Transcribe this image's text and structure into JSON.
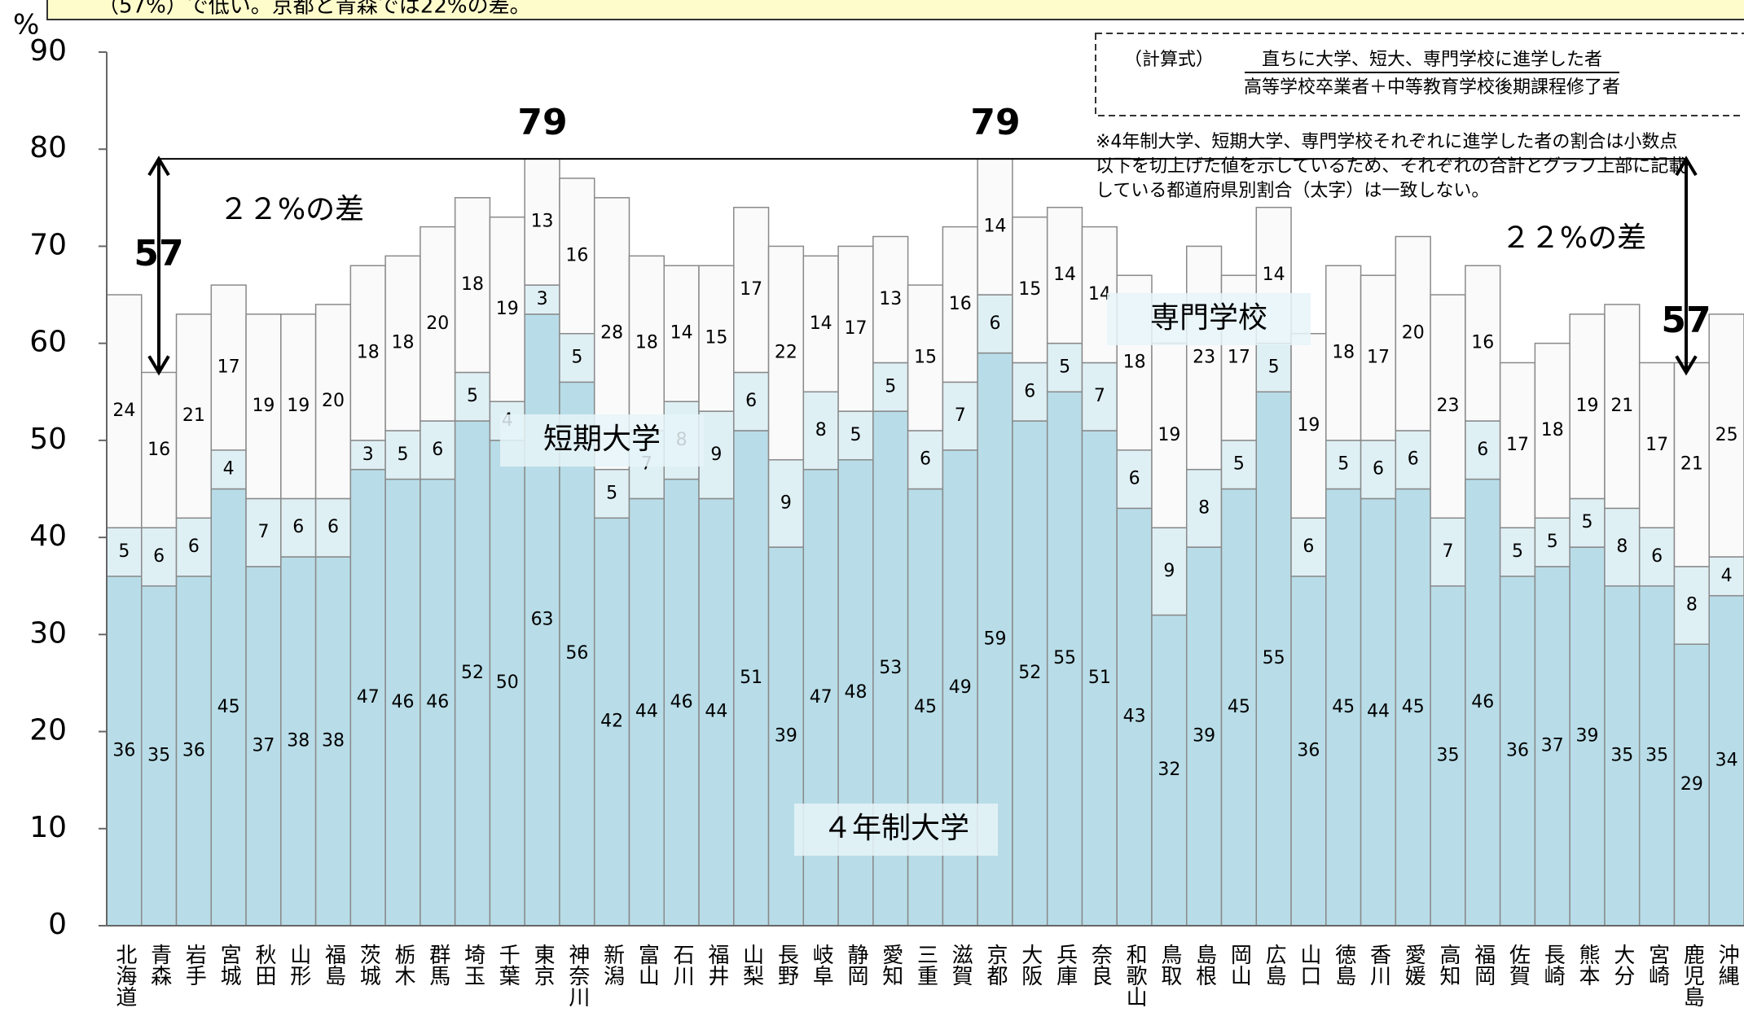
{
  "chart_data": {
    "type": "stacked_bar",
    "header": "（57%）で低い。京都と青森では22%の差。",
    "y_unit": "%",
    "categories": [
      "北海道",
      "青森",
      "岩手",
      "宮城",
      "秋田",
      "山形",
      "福島",
      "茨城",
      "栃木",
      "群馬",
      "埼玉",
      "千葉",
      "東京",
      "神奈川",
      "新潟",
      "富山",
      "石川",
      "福井",
      "山梨",
      "長野",
      "岐阜",
      "静岡",
      "愛知",
      "三重",
      "滋賀",
      "京都",
      "大阪",
      "兵庫",
      "奈良",
      "和歌山",
      "鳥取",
      "島根",
      "岡山",
      "広島",
      "山口",
      "徳島",
      "香川",
      "愛媛",
      "高知",
      "福岡",
      "佐賀",
      "長崎",
      "熊本",
      "大分",
      "宮崎",
      "鹿児島",
      "沖縄"
    ],
    "series": [
      {
        "name": "４年制大学",
        "color": "#b8dde8",
        "values": [
          36,
          35,
          36,
          45,
          37,
          38,
          38,
          47,
          46,
          46,
          52,
          50,
          63,
          56,
          42,
          44,
          46,
          44,
          51,
          39,
          47,
          48,
          53,
          45,
          49,
          59,
          52,
          55,
          51,
          43,
          32,
          39,
          45,
          55,
          36,
          45,
          44,
          45,
          35,
          46,
          36,
          37,
          39,
          35,
          35,
          29,
          34
        ]
      },
      {
        "name": "短期大学",
        "color": "#dff0f5",
        "values": [
          5,
          6,
          6,
          4,
          7,
          6,
          6,
          3,
          5,
          6,
          5,
          4,
          3,
          5,
          5,
          7,
          8,
          9,
          6,
          9,
          8,
          5,
          5,
          6,
          7,
          6,
          6,
          5,
          7,
          6,
          9,
          8,
          5,
          5,
          6,
          5,
          6,
          6,
          7,
          6,
          5,
          5,
          5,
          8,
          6,
          8,
          4
        ]
      },
      {
        "name": "専門学校",
        "color": "#fafafa",
        "values": [
          24,
          16,
          21,
          17,
          19,
          19,
          20,
          18,
          18,
          20,
          18,
          19,
          13,
          16,
          28,
          18,
          14,
          15,
          17,
          22,
          14,
          17,
          13,
          15,
          16,
          14,
          15,
          14,
          14,
          18,
          19,
          23,
          17,
          14,
          19,
          18,
          17,
          20,
          23,
          16,
          17,
          18,
          19,
          21,
          17,
          21,
          25
        ]
      }
    ],
    "annotations": [
      "79",
      "79",
      "57",
      "57",
      "２２%の差",
      "２２%の差"
    ],
    "formula": {
      "label": "（計算式）",
      "numerator": "直ちに大学、短大、専門学校に進学した者",
      "denominator": "高等学校卒業者＋中等教育学校後期課程修了者"
    },
    "note": [
      "※4年制大学、短期大学、専門学校それぞれに進学した者の割合は小数点",
      "以下を切上げた値を示しているため、それぞれの合計とグラフ上部に記載",
      "している都道府県別割合（太字）は一致しない。"
    ],
    "ylim": [
      0,
      90
    ],
    "yticks": [
      0,
      10,
      20,
      30,
      40,
      50,
      60,
      70,
      80,
      90
    ]
  }
}
